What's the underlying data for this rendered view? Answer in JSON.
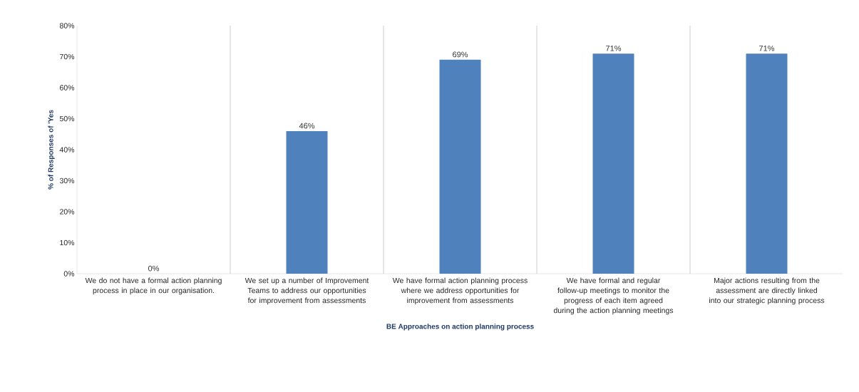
{
  "chart_data": {
    "type": "bar",
    "xlabel": "BE Approaches on action planning process",
    "ylabel": "% of Responses of 'Yes",
    "categories": [
      "We do not have a formal action planning process in place in our organisation.",
      "We set up a number of Improvement Teams to address our opportunities for improvement from assessments",
      "We have formal action planning process where we address opportunities for improvement from assessments",
      "We have formal and regular follow-up meetings to monitor the progress of each item agreed during the action planning meetings",
      "Major actions resulting from the assessment are directly linked into our strategic planning process"
    ],
    "values": [
      0,
      46,
      69,
      71,
      71
    ],
    "value_labels": [
      "0%",
      "46%",
      "69%",
      "71%",
      "71%"
    ],
    "color": "#4f81bd",
    "ylim": [
      0,
      80
    ],
    "yticks": [
      {
        "value": 0,
        "label": "0%"
      },
      {
        "value": 10,
        "label": "10%"
      },
      {
        "value": 20,
        "label": "20%"
      },
      {
        "value": 30,
        "label": "30%"
      },
      {
        "value": 40,
        "label": "40%"
      },
      {
        "value": 50,
        "label": "50%"
      },
      {
        "value": 60,
        "label": "60%"
      },
      {
        "value": 70,
        "label": "70%"
      },
      {
        "value": 80,
        "label": "80%"
      }
    ],
    "grid": "x"
  }
}
